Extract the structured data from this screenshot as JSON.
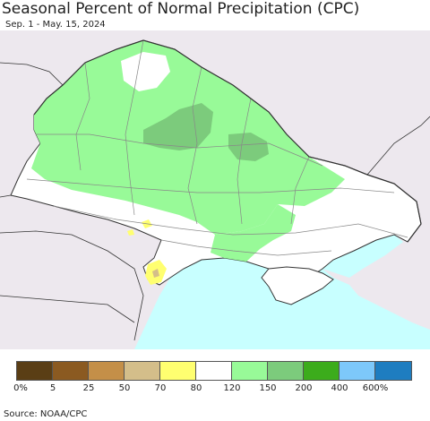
{
  "title": "Seasonal Percent of Normal Precipitation (CPC)",
  "subtitle": "Sep. 1 - May. 15, 2024",
  "source": "Source: NOAA/CPC",
  "legend": {
    "colors": [
      "#5a3e15",
      "#8b5a21",
      "#c48f48",
      "#d4be8a",
      "#ffff70",
      "#ffffff",
      "#98fa98",
      "#7ccb7c",
      "#3cac1c",
      "#7dc8fa",
      "#1e7dc0"
    ],
    "ticks": [
      "0%",
      "5",
      "25",
      "50",
      "70",
      "80",
      "120",
      "150",
      "200",
      "400",
      "600%"
    ]
  },
  "map_colors": {
    "outside": "#ede8ee",
    "normal": "#ffffff",
    "wet": "#98fa98",
    "very_wet": "#7ccb7c",
    "dry": "#ffff70",
    "sea": "#c8ffff",
    "border": "#333333",
    "oblast_border": "#888888"
  }
}
